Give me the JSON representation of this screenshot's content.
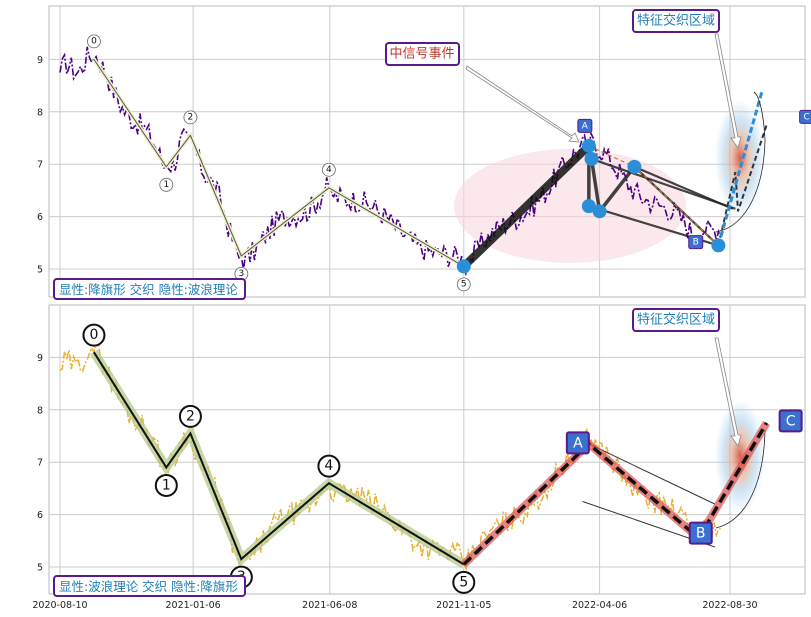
{
  "chart_data": [
    {
      "type": "line",
      "panel": "top",
      "annotation_box": "显性:降旗形 交织 隐性:波浪理论",
      "callout_signal": "中信号事件",
      "callout_region": "特征交织区域",
      "ylim": [
        4.5,
        10.0
      ],
      "y_ticks": [
        "5",
        "6",
        "7",
        "8",
        "9"
      ],
      "wave_points": [
        {
          "label": "0",
          "date": "2020-09-17",
          "value": 9.0
        },
        {
          "label": "1",
          "date": "2020-12-07",
          "value": 6.95
        },
        {
          "label": "2",
          "date": "2021-01-03",
          "value": 7.55
        },
        {
          "label": "3",
          "date": "2021-03-01",
          "value": 5.25
        },
        {
          "label": "4",
          "date": "2021-06-07",
          "value": 6.55
        },
        {
          "label": "5",
          "date": "2021-11-05",
          "value": 5.05
        }
      ],
      "abc_points": [
        {
          "label": "A",
          "date": "2022-03-25",
          "value": 7.35
        },
        {
          "label": "B",
          "date": "2022-07-26",
          "value": 5.55
        },
        {
          "label": "C",
          "date": "2022-10-10",
          "value": 7.75
        }
      ],
      "line_color": "#4b0082",
      "wave_color": "#555555",
      "marker_color": "#2a8fd8"
    },
    {
      "type": "line",
      "panel": "bottom",
      "annotation_box": "显性:波浪理论 交织 隐性:降旗形",
      "callout_region": "特征交织区域",
      "ylim": [
        4.5,
        10.0
      ],
      "y_ticks": [
        "5",
        "6",
        "7",
        "8",
        "9"
      ],
      "x_ticks": [
        "2020-08-10",
        "2021-01-06",
        "2021-06-08",
        "2021-11-05",
        "2022-04-06",
        "2022-08-30"
      ],
      "wave_points": [
        {
          "label": "0",
          "date": "2020-09-17",
          "value": 9.1
        },
        {
          "label": "1",
          "date": "2020-12-07",
          "value": 6.9
        },
        {
          "label": "2",
          "date": "2021-01-03",
          "value": 7.55
        },
        {
          "label": "3",
          "date": "2021-03-01",
          "value": 5.15
        },
        {
          "label": "4",
          "date": "2021-06-07",
          "value": 6.6
        },
        {
          "label": "5",
          "date": "2021-11-05",
          "value": 5.05
        }
      ],
      "abc_points": [
        {
          "label": "A",
          "date": "2022-03-25",
          "value": 7.35
        },
        {
          "label": "B",
          "date": "2022-07-26",
          "value": 5.55
        },
        {
          "label": "C",
          "date": "2022-10-10",
          "value": 7.75
        }
      ],
      "line_color": "#e8b030",
      "wave_color": "#111111",
      "abc_color": "#e05050",
      "box_color": "#3b6fd0"
    }
  ]
}
